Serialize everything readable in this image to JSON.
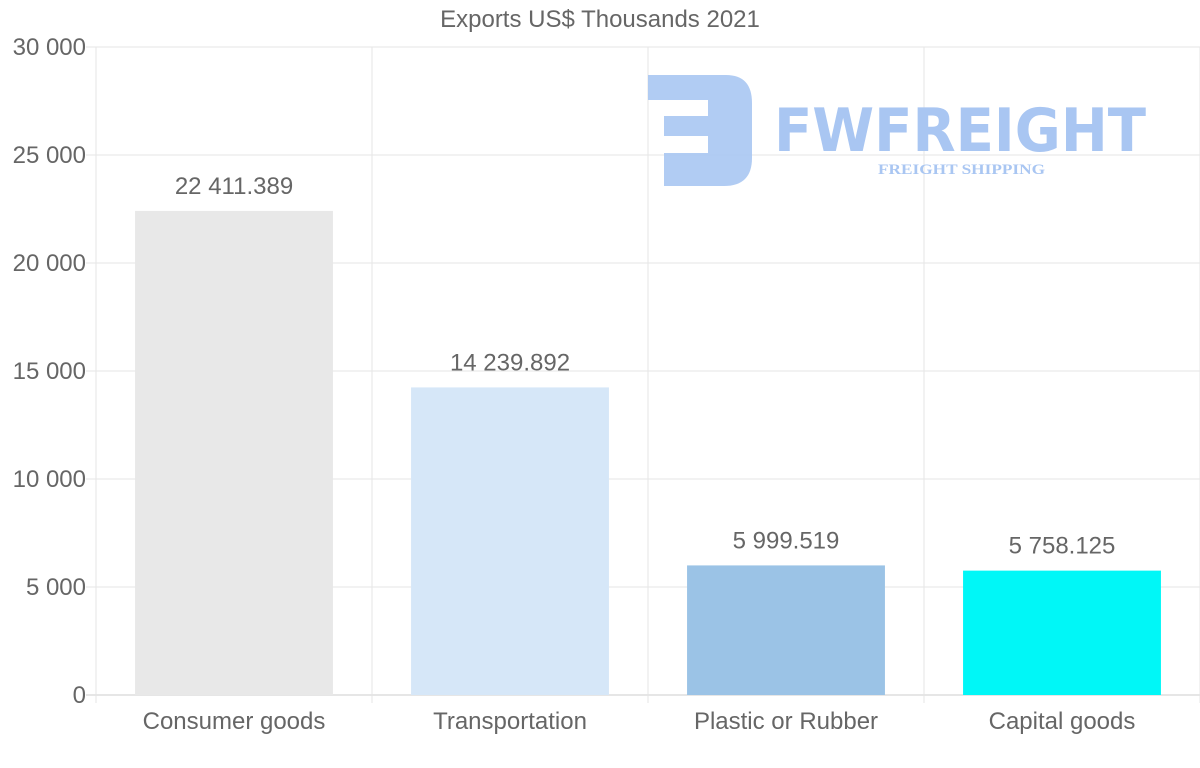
{
  "chart_data": {
    "type": "bar",
    "title": "Exports US$ Thousands 2021",
    "xlabel": "",
    "ylabel": "",
    "categories": [
      "Consumer goods",
      "Transportation",
      "Plastic or Rubber",
      "Capital goods"
    ],
    "values": [
      22411.389,
      14239.892,
      5999.519,
      5758.125
    ],
    "value_labels": [
      "22 411.389",
      "14 239.892",
      "5 999.519",
      "5 758.125"
    ],
    "bar_colors": [
      "#e8e8e8",
      "#d6e7f8",
      "#9bc3e6",
      "#00f7f7"
    ],
    "ylim": [
      0,
      30000
    ],
    "yticks": [
      0,
      5000,
      10000,
      15000,
      20000,
      25000,
      30000
    ],
    "ytick_labels": [
      "0",
      "5 000",
      "10 000",
      "15 000",
      "20 000",
      "25 000",
      "30 000"
    ],
    "grid": true,
    "legend": "none"
  },
  "watermark": {
    "brand": "FWFREIGHT",
    "tagline": "FREIGHT SHIPPING",
    "color": "#a9c6f2"
  }
}
